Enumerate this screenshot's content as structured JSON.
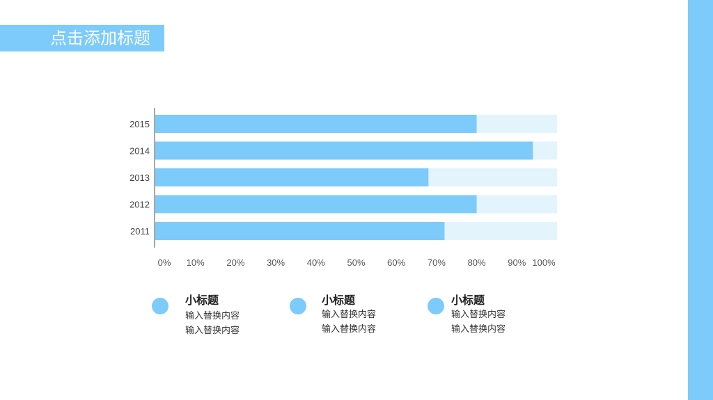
{
  "slide": {
    "title": "点击添加标题"
  },
  "colors": {
    "accent": "#7ccbfb",
    "track": "#e3f4fc",
    "axis": "#8a8a8a"
  },
  "chart_data": {
    "type": "bar",
    "orientation": "horizontal",
    "stacked_to_100": true,
    "categories": [
      "2015",
      "2014",
      "2013",
      "2012",
      "2011"
    ],
    "series": [
      {
        "values": [
          80,
          94,
          68,
          80,
          72
        ]
      },
      {
        "values": [
          20,
          6,
          32,
          20,
          28
        ]
      }
    ],
    "xlim": [
      0,
      100
    ],
    "xticks": [
      "0%",
      "10%",
      "20%",
      "30%",
      "40%",
      "50%",
      "60%",
      "70%",
      "80%",
      "90%",
      "100%"
    ],
    "grid": false
  },
  "legend": {
    "items": [
      {
        "title": "小标题",
        "lines": [
          "输入替换内容",
          "输入替换内容"
        ]
      },
      {
        "title": "小标题",
        "lines": [
          "输入替换内容",
          "输入替换内容"
        ]
      },
      {
        "title": "小标题",
        "lines": [
          "输入替换内容",
          "输入替换内容"
        ]
      }
    ]
  }
}
